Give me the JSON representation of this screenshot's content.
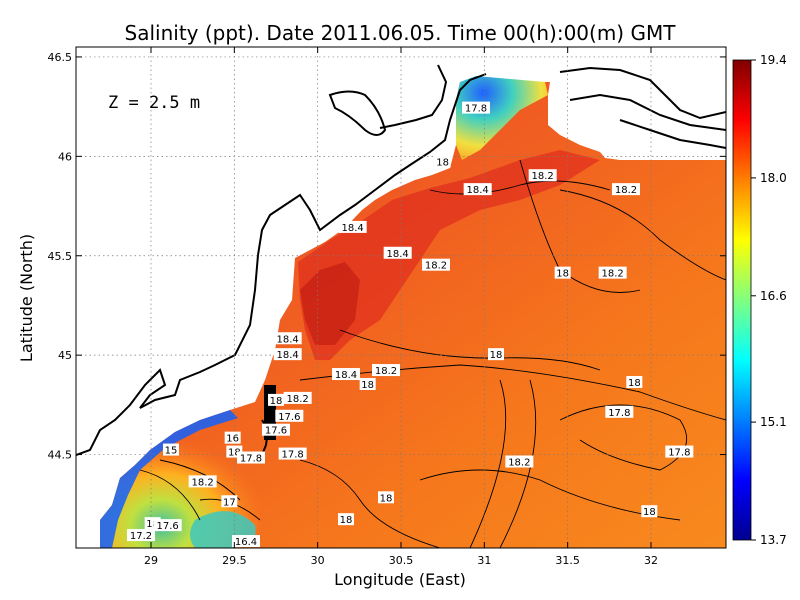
{
  "chart_data": {
    "type": "heatmap",
    "title": "Salinity (ppt). Date 2011.06.05. Time 00(h):00(m) GMT",
    "xlabel": "Longitude (East)",
    "ylabel": "Latitude (North)",
    "depth_label": "Z = 2.5 m",
    "xlim": [
      28.55,
      32.45
    ],
    "ylim": [
      44.03,
      46.55
    ],
    "x_ticks": [
      29,
      29.5,
      30,
      30.5,
      31,
      31.5,
      32
    ],
    "x_tick_labels": [
      "29",
      "29.5",
      "30",
      "30.5",
      "31",
      "31.5",
      "32"
    ],
    "y_ticks": [
      44.5,
      45,
      45.5,
      46,
      46.5
    ],
    "y_tick_labels": [
      "44.5",
      "45",
      "45.5",
      "46",
      "46.5"
    ],
    "grid": true,
    "colorbar": {
      "min": 13.7,
      "max": 19.4,
      "ticks": [
        13.7,
        15.1,
        16.6,
        18.0,
        19.4
      ],
      "tick_labels": [
        "13.7",
        "15.1",
        "16.6",
        "18.0",
        "19.4"
      ],
      "colors": [
        "#00008f",
        "#0000ff",
        "#0080ff",
        "#00ffff",
        "#80ff80",
        "#ffff00",
        "#ff8000",
        "#ff0000",
        "#800000"
      ]
    },
    "contour_labels": [
      {
        "lon": 30.95,
        "lat": 46.24,
        "text": "17.8"
      },
      {
        "lon": 30.75,
        "lat": 45.97,
        "text": "18"
      },
      {
        "lon": 31.35,
        "lat": 45.9,
        "text": "18.2"
      },
      {
        "lon": 31.85,
        "lat": 45.83,
        "text": "18.2"
      },
      {
        "lon": 30.96,
        "lat": 45.83,
        "text": "18.4"
      },
      {
        "lon": 30.21,
        "lat": 45.64,
        "text": "18.4"
      },
      {
        "lon": 30.48,
        "lat": 45.51,
        "text": "18.4"
      },
      {
        "lon": 30.71,
        "lat": 45.45,
        "text": "18.2"
      },
      {
        "lon": 31.47,
        "lat": 45.41,
        "text": "18"
      },
      {
        "lon": 31.77,
        "lat": 45.41,
        "text": "18.2"
      },
      {
        "lon": 29.82,
        "lat": 45.08,
        "text": "18.4"
      },
      {
        "lon": 29.82,
        "lat": 45.0,
        "text": "18.4"
      },
      {
        "lon": 30.17,
        "lat": 44.9,
        "text": "18.4"
      },
      {
        "lon": 30.41,
        "lat": 44.92,
        "text": "18.2"
      },
      {
        "lon": 30.3,
        "lat": 44.85,
        "text": "18"
      },
      {
        "lon": 31.07,
        "lat": 45.0,
        "text": "18"
      },
      {
        "lon": 31.9,
        "lat": 44.86,
        "text": "18"
      },
      {
        "lon": 29.75,
        "lat": 44.77,
        "text": "18"
      },
      {
        "lon": 29.88,
        "lat": 44.78,
        "text": "18.2"
      },
      {
        "lon": 29.83,
        "lat": 44.69,
        "text": "17.6"
      },
      {
        "lon": 29.75,
        "lat": 44.62,
        "text": "17.6"
      },
      {
        "lon": 29.49,
        "lat": 44.58,
        "text": "16"
      },
      {
        "lon": 29.5,
        "lat": 44.51,
        "text": "18"
      },
      {
        "lon": 29.12,
        "lat": 44.52,
        "text": "15"
      },
      {
        "lon": 29.6,
        "lat": 44.48,
        "text": "17.8"
      },
      {
        "lon": 29.85,
        "lat": 44.5,
        "text": "17.8"
      },
      {
        "lon": 31.81,
        "lat": 44.71,
        "text": "17.8"
      },
      {
        "lon": 32.17,
        "lat": 44.51,
        "text": "17.8"
      },
      {
        "lon": 31.21,
        "lat": 44.46,
        "text": "18.2"
      },
      {
        "lon": 29.31,
        "lat": 44.36,
        "text": "18.2"
      },
      {
        "lon": 29.47,
        "lat": 44.26,
        "text": "17"
      },
      {
        "lon": 30.41,
        "lat": 44.28,
        "text": "18"
      },
      {
        "lon": 31.99,
        "lat": 44.21,
        "text": "18"
      },
      {
        "lon": 30.17,
        "lat": 44.17,
        "text": "18"
      },
      {
        "lon": 29.01,
        "lat": 44.15,
        "text": "18"
      },
      {
        "lon": 29.1,
        "lat": 44.14,
        "text": "17.6"
      },
      {
        "lon": 28.94,
        "lat": 44.09,
        "text": "17.2"
      },
      {
        "lon": 29.57,
        "lat": 44.06,
        "text": "16.4"
      }
    ]
  }
}
